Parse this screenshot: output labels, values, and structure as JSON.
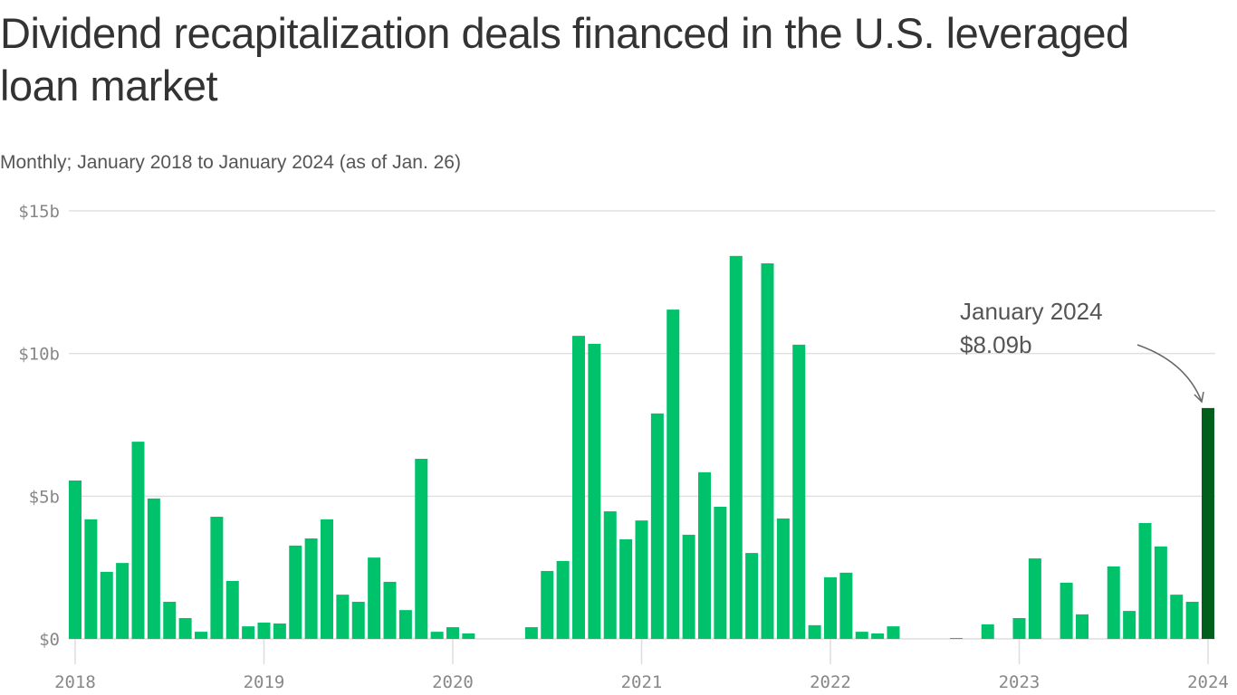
{
  "chart_data": {
    "type": "bar",
    "title": "Dividend recapitalization deals financed in the U.S. leveraged loan market",
    "subtitle": "Monthly; January 2018 to January 2024 (as of Jan. 26)",
    "xlabel": "",
    "ylabel": "",
    "ylim": [
      0,
      15
    ],
    "y_ticks": [
      {
        "value": 0,
        "label": "$0"
      },
      {
        "value": 5,
        "label": "$5b"
      },
      {
        "value": 10,
        "label": "$10b"
      },
      {
        "value": 15,
        "label": "$15b"
      }
    ],
    "x_ticks": [
      "2018",
      "2019",
      "2020",
      "2021",
      "2022",
      "2023",
      "2024"
    ],
    "grid": true,
    "unit": "billions USD",
    "colors": {
      "bar": "#00c26b",
      "highlight": "#005f1a",
      "grid": "#e0e0e0"
    },
    "start_month": "2018-01",
    "values": [
      5.55,
      4.19,
      2.35,
      2.66,
      6.91,
      4.92,
      1.3,
      0.73,
      0.25,
      4.28,
      2.03,
      0.44,
      0.57,
      0.54,
      3.27,
      3.52,
      4.19,
      1.55,
      1.3,
      2.85,
      2.0,
      1.01,
      6.31,
      0.25,
      0.41,
      0.19,
      0,
      0,
      0,
      0.41,
      2.38,
      2.73,
      10.62,
      10.34,
      4.47,
      3.49,
      4.15,
      7.9,
      11.54,
      3.65,
      5.84,
      4.63,
      13.42,
      3.01,
      13.16,
      4.22,
      10.31,
      0.48,
      2.16,
      2.32,
      0.25,
      0.19,
      0.44,
      0,
      0,
      0,
      0.03,
      0,
      0.51,
      0,
      0.73,
      2.82,
      0,
      1.97,
      0.86,
      0,
      2.54,
      0.98,
      4.06,
      3.24,
      1.55,
      1.3,
      8.09
    ],
    "annotation": {
      "line1": "January 2024",
      "line2": "$8.09b"
    }
  }
}
